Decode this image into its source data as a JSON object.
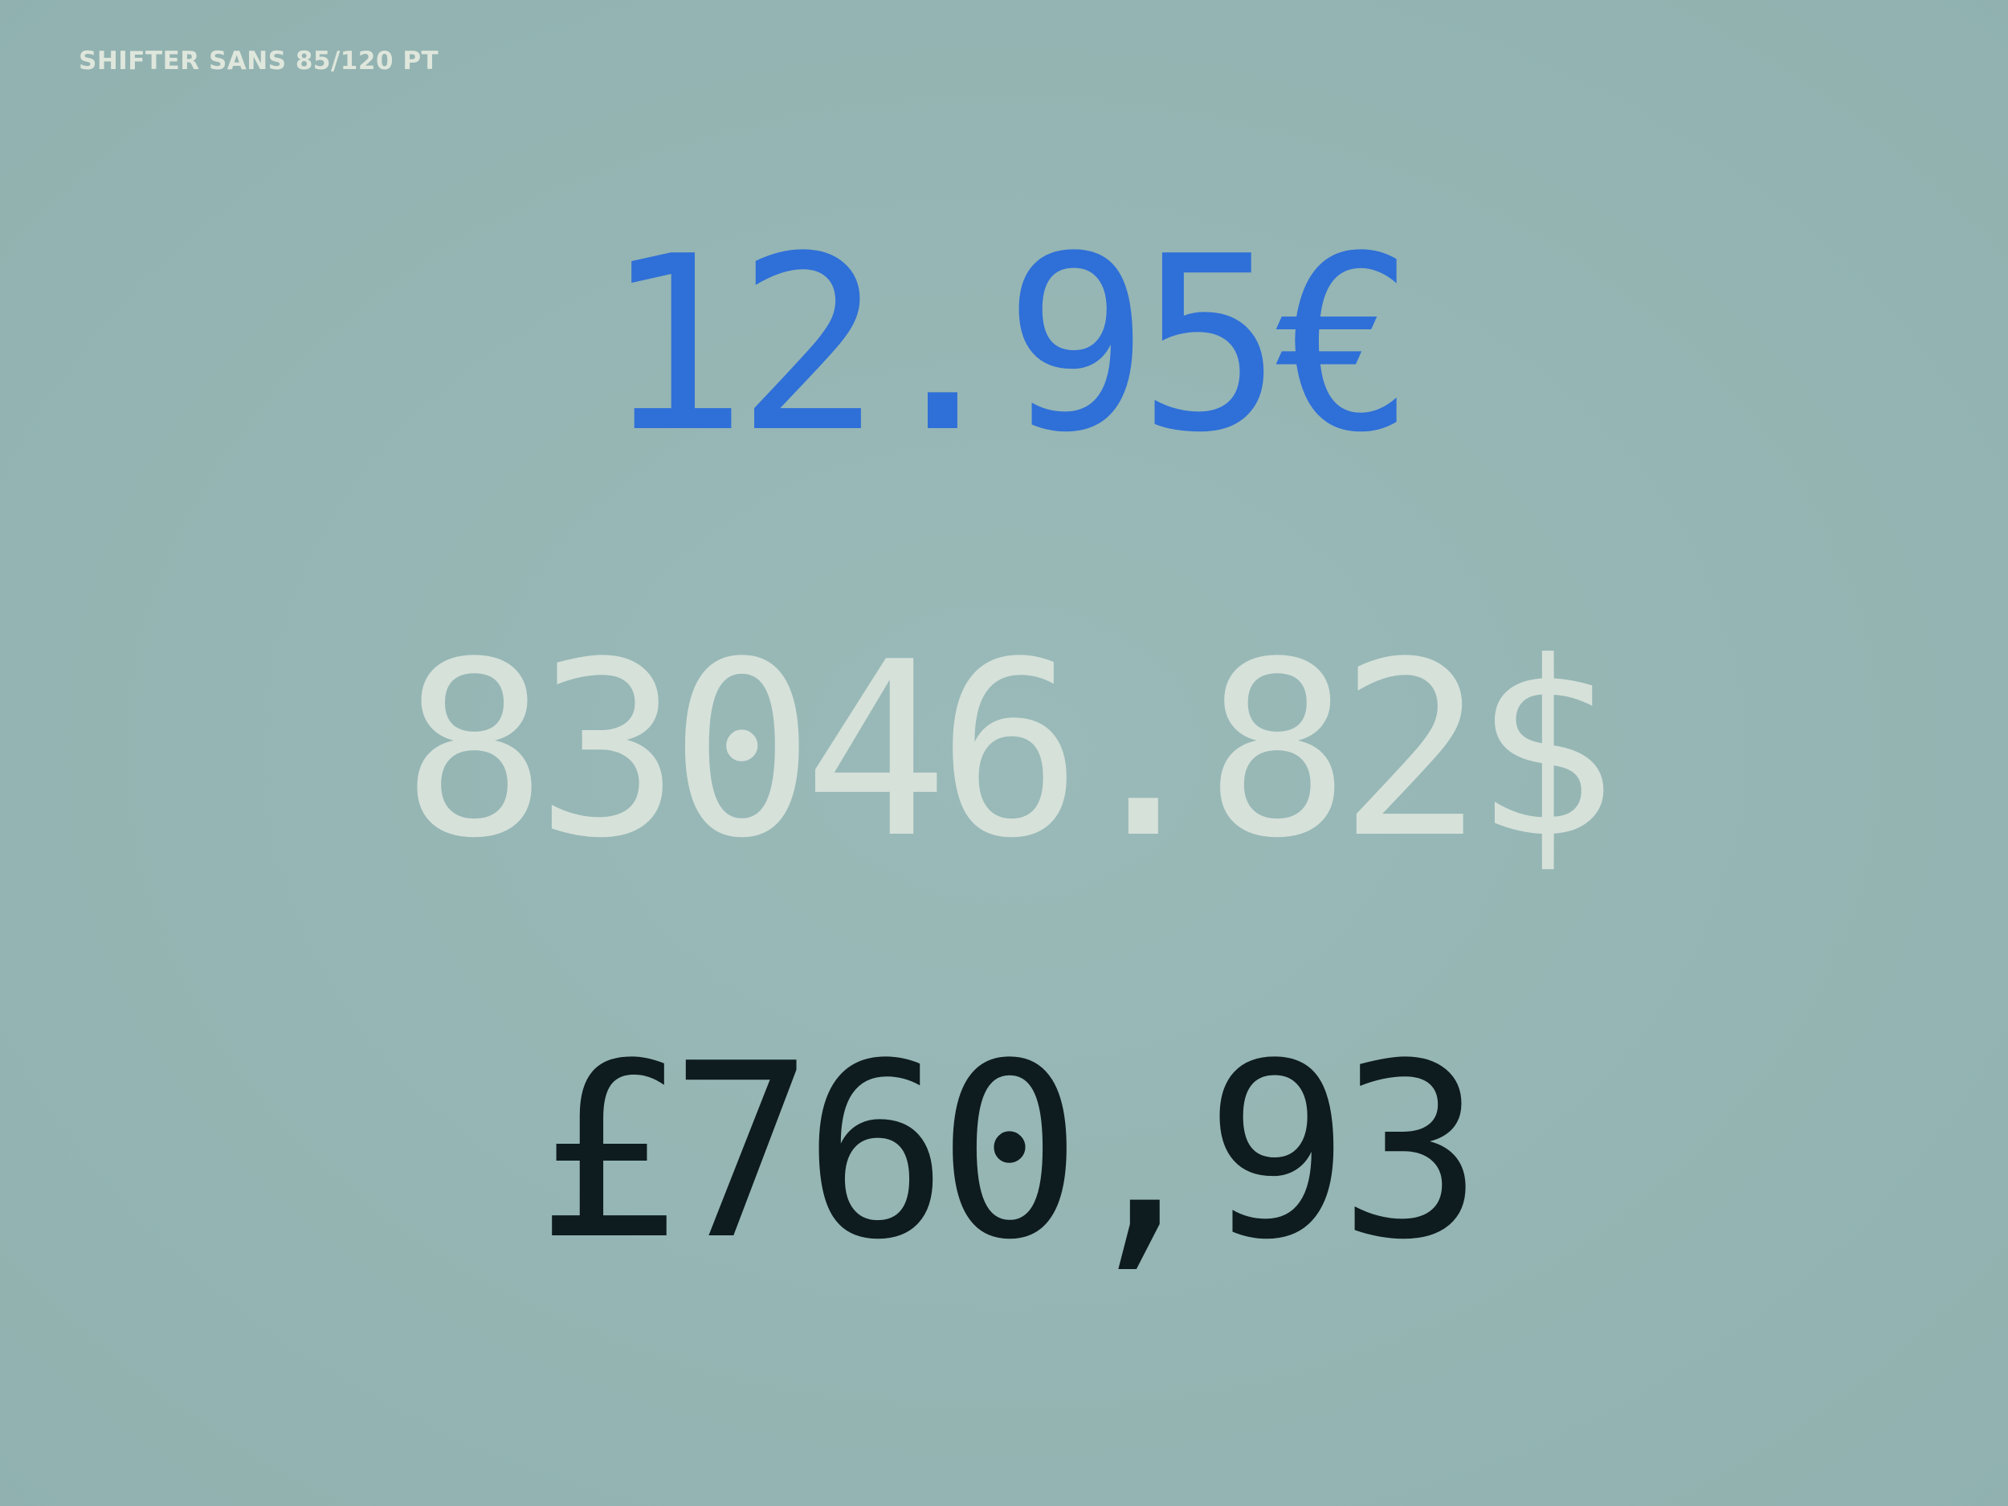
{
  "specimen": {
    "label": "SHIFTER SANS 85/120 PT",
    "label_color": "#dfe6dc",
    "background": "#95b7b5",
    "lines": [
      {
        "text": "12.95€",
        "color": "#2f6fd8"
      },
      {
        "text": "83046.82$",
        "color": "#d6e1da"
      },
      {
        "text": "£760,93",
        "color": "#0e1b1f"
      }
    ]
  }
}
